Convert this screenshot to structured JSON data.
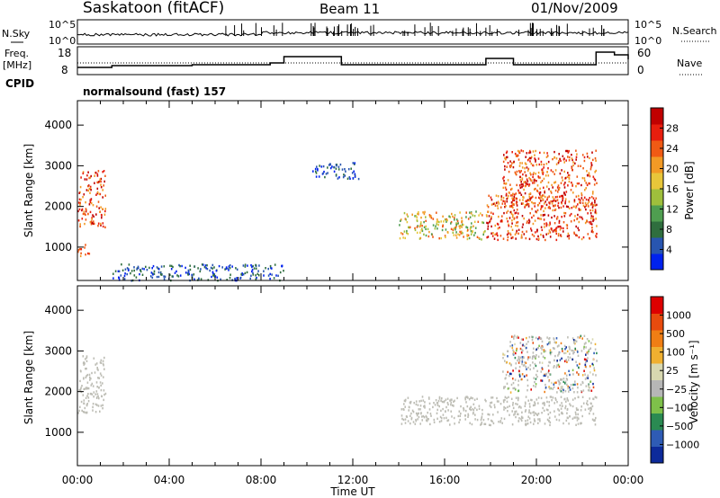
{
  "header": {
    "station": "Saskatoon (fitACF)",
    "beam": "Beam 11",
    "date": "01/Nov/2009"
  },
  "noise_panel": {
    "left_label": "N.Sky",
    "right_label": "N.Search",
    "left_ticks": [
      "10^5",
      "10^0"
    ],
    "right_ticks": [
      "10^5",
      "10^0"
    ]
  },
  "freq_panel": {
    "left_label_line1": "Freq.",
    "left_label_line2": "[MHz]",
    "right_label": "Nave",
    "left_ticks": [
      "18",
      "8"
    ],
    "right_ticks": [
      "60",
      "0"
    ]
  },
  "cpid": {
    "label": "CPID",
    "value": "normalsound (fast) 157"
  },
  "chart_data": [
    {
      "type": "heatmap",
      "name": "power",
      "ylabel": "Slant Range [km]",
      "colorbar_label": "Power [dB]",
      "colorbar_ticks": [
        "28",
        "24",
        "20",
        "16",
        "12",
        "8",
        "4"
      ],
      "ylim": [
        180,
        4600
      ],
      "y_ticks": [
        "4000",
        "3000",
        "2000",
        "1000"
      ],
      "scatter_regions": [
        {
          "x": [
            0.0,
            1.2
          ],
          "y": [
            1500,
            2900
          ],
          "level": "high"
        },
        {
          "x": [
            0.0,
            0.5
          ],
          "y": [
            800,
            1100
          ],
          "level": "high"
        },
        {
          "x": [
            1.5,
            9.0
          ],
          "y": [
            200,
            600
          ],
          "level": "low"
        },
        {
          "x": [
            10.2,
            12.3
          ],
          "y": [
            2700,
            3100
          ],
          "level": "low"
        },
        {
          "x": [
            14.0,
            17.8
          ],
          "y": [
            1200,
            1900
          ],
          "level": "medium"
        },
        {
          "x": [
            17.8,
            22.6
          ],
          "y": [
            1200,
            2300
          ],
          "level": "high"
        },
        {
          "x": [
            18.5,
            22.6
          ],
          "y": [
            2000,
            3400
          ],
          "level": "high"
        }
      ]
    },
    {
      "type": "heatmap",
      "name": "velocity",
      "xlabel": "Time UT",
      "ylabel": "Slant Range [km]",
      "colorbar_label": "Velocity [m s⁻¹]",
      "colorbar_ticks": [
        "1000",
        "500",
        "100",
        "25",
        "−25",
        "−100",
        "−500",
        "−1000"
      ],
      "ylim": [
        180,
        4600
      ],
      "y_ticks": [
        "4000",
        "3000",
        "2000",
        "1000"
      ],
      "x_ticks": [
        "00:00",
        "04:00",
        "08:00",
        "12:00",
        "16:00",
        "20:00",
        "00:00"
      ],
      "xlim": [
        0,
        24
      ],
      "scatter_regions": [
        {
          "x": [
            0.0,
            1.2
          ],
          "y": [
            1500,
            2900
          ],
          "level": "ground"
        },
        {
          "x": [
            14.0,
            22.6
          ],
          "y": [
            1200,
            1900
          ],
          "level": "ground"
        },
        {
          "x": [
            18.5,
            22.6
          ],
          "y": [
            2000,
            3400
          ],
          "level": "mixed"
        }
      ]
    }
  ],
  "colors": {
    "power_scale": [
      "#0022ee",
      "#2855b0",
      "#2f6e3e",
      "#4f9e50",
      "#9fbf3c",
      "#e8c63a",
      "#f29a25",
      "#f05a14",
      "#e81e0e",
      "#c00000"
    ],
    "velocity_scale": [
      "#0d2a9a",
      "#2e5bb5",
      "#2a8a52",
      "#7ec04a",
      "#b6b6b6",
      "#d8d8b0",
      "#f0b030",
      "#f07e14",
      "#e84b0e",
      "#dd0000"
    ],
    "ground": "#bdbdb5"
  }
}
